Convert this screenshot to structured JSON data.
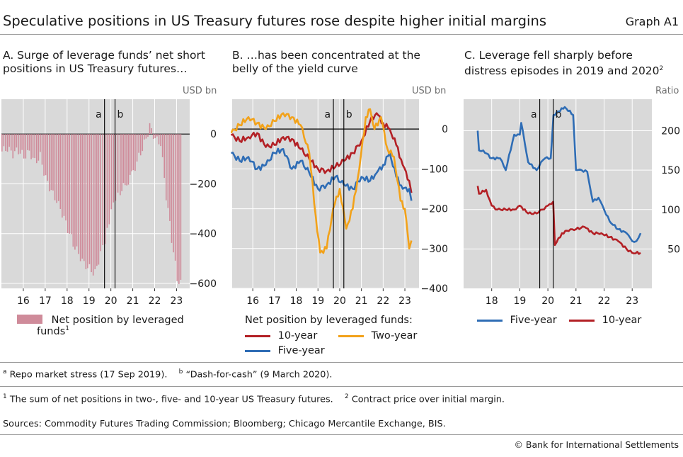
{
  "header": {
    "title": "Speculative positions in US Treasury futures rose despite higher initial margins",
    "graph_id": "Graph A1"
  },
  "colors": {
    "bars": "#cf8b9a",
    "ten_year": "#b32025",
    "five_year": "#2f6db5",
    "two_year": "#f2a21a",
    "plot_bg": "#d9d9d9"
  },
  "panels": {
    "a": {
      "title_line1": "A. Surge of leverage funds’ net short",
      "title_line2": "positions in US Treasury futures…",
      "unit": "USD bn",
      "legend": "Net position by leveraged",
      "legend2": "funds",
      "legend2_sup": "1"
    },
    "b": {
      "title_line1": "B. …has been concentrated at the",
      "title_line2": "belly of the yield curve",
      "unit": "USD bn",
      "legend_title": "Net position by leveraged funds:"
    },
    "c": {
      "title_line1": "C. Leverage fell sharply before",
      "title_line2": "distress episodes in 2019 and 2020",
      "title_sup": "2",
      "unit": "Ratio"
    }
  },
  "chart_data": [
    {
      "type": "bar",
      "title": "A. Surge of leverage funds’ net short positions in US Treasury futures…",
      "ylabel": "USD bn",
      "ylim": [
        -620,
        140
      ],
      "yticks": [
        0,
        -200,
        -400,
        -600
      ],
      "xticks": [
        "16",
        "17",
        "18",
        "19",
        "20",
        "21",
        "22",
        "23"
      ],
      "vlines": [
        {
          "label": "a",
          "x": 2019.71
        },
        {
          "label": "b",
          "x": 2020.19
        }
      ],
      "series": [
        {
          "name": "Net position by leveraged funds",
          "x": [
            2015.0,
            2015.25,
            2015.5,
            2015.75,
            2016.0,
            2016.25,
            2016.5,
            2016.75,
            2017.0,
            2017.25,
            2017.5,
            2017.75,
            2018.0,
            2018.25,
            2018.5,
            2018.75,
            2019.0,
            2019.25,
            2019.5,
            2019.71,
            2019.9,
            2020.19,
            2020.4,
            2020.7,
            2021.0,
            2021.25,
            2021.5,
            2021.75,
            2022.0,
            2022.25,
            2022.5,
            2022.75,
            2023.0,
            2023.25
          ],
          "values": [
            -70,
            -60,
            -80,
            -65,
            -90,
            -70,
            -110,
            -90,
            -180,
            -230,
            -270,
            -320,
            -380,
            -440,
            -480,
            -520,
            -540,
            -560,
            -480,
            -440,
            -350,
            -250,
            -230,
            -200,
            -150,
            -90,
            -40,
            30,
            -20,
            -40,
            -250,
            -420,
            -580,
            -610
          ]
        }
      ]
    },
    {
      "type": "line",
      "title": "B. …has been concentrated at the belly of the yield curve",
      "ylabel": "USD bn",
      "ylim": [
        -400,
        75
      ],
      "yticks": [
        0,
        -100,
        -200,
        -300,
        -400
      ],
      "xticks": [
        "16",
        "17",
        "18",
        "19",
        "20",
        "21",
        "22",
        "23"
      ],
      "vlines": [
        {
          "label": "a",
          "x": 2019.71
        },
        {
          "label": "b",
          "x": 2020.19
        }
      ],
      "series": [
        {
          "name": "10-year",
          "color_key": "ten_year",
          "x": [
            2015.0,
            2015.4,
            2015.8,
            2016.2,
            2016.6,
            2017.0,
            2017.4,
            2017.8,
            2018.2,
            2018.6,
            2019.0,
            2019.4,
            2019.8,
            2020.2,
            2020.6,
            2021.0,
            2021.4,
            2021.7,
            2022.0,
            2022.3,
            2022.6,
            2022.9,
            2023.2,
            2023.3
          ],
          "values": [
            -15,
            -30,
            -20,
            -10,
            -45,
            -40,
            -20,
            -25,
            -50,
            -75,
            -100,
            -105,
            -95,
            -80,
            -60,
            -30,
            20,
            40,
            15,
            0,
            -40,
            -90,
            -130,
            -160
          ]
        },
        {
          "name": "Five-year",
          "color_key": "five_year",
          "x": [
            2015.0,
            2015.4,
            2015.8,
            2016.2,
            2016.6,
            2017.0,
            2017.4,
            2017.8,
            2018.2,
            2018.6,
            2019.0,
            2019.4,
            2019.8,
            2020.2,
            2020.6,
            2021.0,
            2021.4,
            2021.7,
            2022.0,
            2022.3,
            2022.6,
            2022.9,
            2023.2,
            2023.3
          ],
          "values": [
            -60,
            -80,
            -70,
            -100,
            -90,
            -60,
            -50,
            -100,
            -80,
            -110,
            -150,
            -140,
            -120,
            -140,
            -150,
            -120,
            -130,
            -110,
            -90,
            -60,
            -120,
            -150,
            -150,
            -180
          ]
        },
        {
          "name": "Two-year",
          "color_key": "two_year",
          "x": [
            2015.0,
            2015.4,
            2015.8,
            2016.2,
            2016.6,
            2017.0,
            2017.4,
            2017.8,
            2018.2,
            2018.6,
            2018.9,
            2019.1,
            2019.4,
            2019.7,
            2020.0,
            2020.3,
            2020.6,
            2020.9,
            2021.2,
            2021.4,
            2021.6,
            2021.9,
            2022.2,
            2022.5,
            2022.8,
            2023.0,
            2023.2,
            2023.3
          ],
          "values": [
            -10,
            10,
            30,
            15,
            0,
            20,
            40,
            30,
            10,
            -60,
            -220,
            -310,
            -300,
            -200,
            -150,
            -250,
            -200,
            -100,
            30,
            50,
            0,
            30,
            -50,
            -70,
            -180,
            -200,
            -300,
            -280
          ]
        }
      ]
    },
    {
      "type": "line",
      "title": "C. Leverage fell sharply before distress episodes in 2019 and 2020",
      "ylabel": "Ratio",
      "ylim": [
        0,
        240
      ],
      "yticks": [
        50,
        100,
        150,
        200
      ],
      "xticks": [
        "18",
        "19",
        "20",
        "21",
        "22",
        "23"
      ],
      "vlines": [
        {
          "label": "a",
          "x": 2019.71
        },
        {
          "label": "b",
          "x": 2020.19
        }
      ],
      "series": [
        {
          "name": "Five-year",
          "color_key": "five_year",
          "x": [
            2017.5,
            2017.55,
            2017.7,
            2018.0,
            2018.3,
            2018.5,
            2018.8,
            2019.0,
            2019.05,
            2019.3,
            2019.6,
            2019.75,
            2019.9,
            2020.1,
            2020.2,
            2020.6,
            2020.9,
            2021.0,
            2021.2,
            2021.4,
            2021.6,
            2021.8,
            2022.0,
            2022.2,
            2022.5,
            2022.8,
            2023.0,
            2023.15,
            2023.3
          ],
          "values": [
            200,
            175,
            175,
            165,
            165,
            150,
            195,
            195,
            210,
            160,
            150,
            160,
            165,
            165,
            220,
            230,
            220,
            150,
            150,
            148,
            110,
            115,
            100,
            85,
            75,
            70,
            60,
            60,
            70
          ]
        },
        {
          "name": "10-year",
          "color_key": "ten_year",
          "x": [
            2017.5,
            2017.55,
            2017.8,
            2018.0,
            2018.2,
            2018.5,
            2018.8,
            2019.0,
            2019.3,
            2019.6,
            2019.8,
            2020.0,
            2020.19,
            2020.25,
            2020.5,
            2020.8,
            2021.0,
            2021.3,
            2021.6,
            2021.9,
            2022.2,
            2022.5,
            2022.8,
            2023.0,
            2023.3
          ],
          "values": [
            130,
            120,
            125,
            105,
            100,
            100,
            100,
            105,
            95,
            95,
            100,
            105,
            110,
            55,
            70,
            75,
            75,
            78,
            70,
            70,
            65,
            60,
            50,
            45,
            45
          ]
        }
      ]
    }
  ],
  "legend_b": {
    "ten_year": "10-year",
    "two_year": "Two-year",
    "five_year": "Five-year"
  },
  "legend_c": {
    "five_year": "Five-year",
    "ten_year": "10-year"
  },
  "notes": {
    "note_a_sup": "a",
    "note_a": "Repo market stress (17 Sep 2019).",
    "note_b_sup": "b",
    "note_b": "“Dash-for-cash” (9 March 2020).",
    "fn1_sup": "1",
    "fn1": "The sum of net positions in two-, five- and 10-year US Treasury futures.",
    "fn2_sup": "2",
    "fn2": "Contract price over initial margin.",
    "sources": "Sources: Commodity Futures Trading Commission; Bloomberg; Chicago Mercantile Exchange, BIS.",
    "copyright": "© Bank for International Settlements"
  }
}
